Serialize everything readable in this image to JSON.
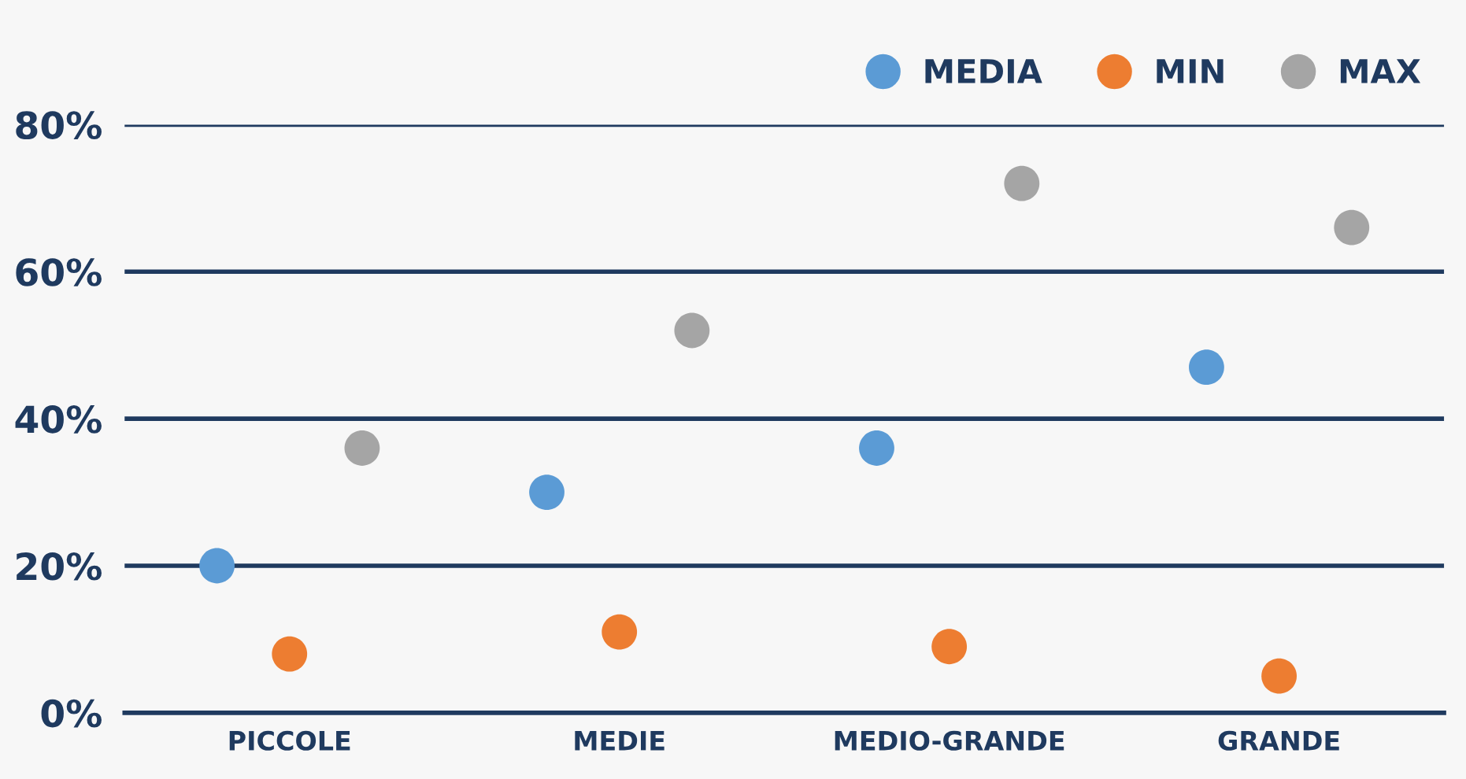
{
  "chart_data": {
    "type": "scatter",
    "categories": [
      "PICCOLE",
      "MEDIE",
      "MEDIO-GRANDE",
      "GRANDE"
    ],
    "series": [
      {
        "name": "MEDIA",
        "color": "#5b9bd5",
        "values": [
          20,
          30,
          36,
          47
        ]
      },
      {
        "name": "MIN",
        "color": "#ed7d31",
        "values": [
          8,
          11,
          9,
          5
        ]
      },
      {
        "name": "MAX",
        "color": "#a5a5a5",
        "values": [
          36,
          52,
          72,
          66
        ]
      }
    ],
    "ylim": [
      0,
      80
    ],
    "yticks": [
      {
        "value": 0,
        "label": "0%"
      },
      {
        "value": 20,
        "label": "20%"
      },
      {
        "value": 40,
        "label": "40%"
      },
      {
        "value": 60,
        "label": "60%"
      },
      {
        "value": 80,
        "label": "80%"
      }
    ],
    "grid": "y",
    "legend": "top right",
    "marker": "circle"
  }
}
